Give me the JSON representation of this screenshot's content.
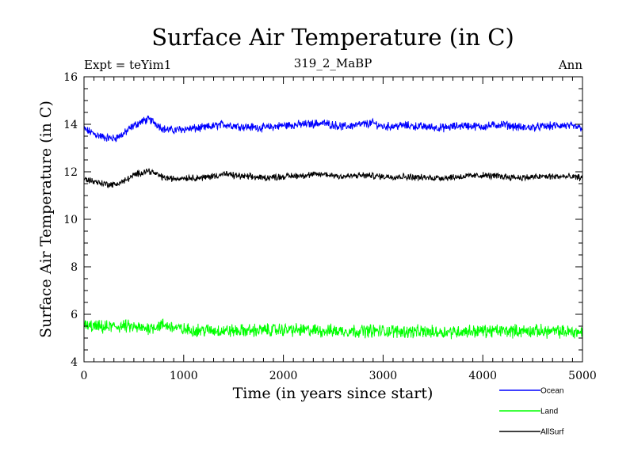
{
  "chart_data": {
    "type": "line",
    "title": "Surface Air Temperature (in C)",
    "subtitle": "319_2_MaBP",
    "left_label": "Expt = teYim1",
    "right_label": "Ann",
    "xlabel": "Time (in years since start)",
    "ylabel": "Surface Air Temperature (in C)",
    "xlim": [
      0,
      5000
    ],
    "ylim": [
      4,
      16
    ],
    "x_ticks": [
      0,
      1000,
      2000,
      3000,
      4000,
      5000
    ],
    "x_tick_labels": [
      "0",
      "1000",
      "2000",
      "3000",
      "4000",
      "5000"
    ],
    "y_ticks": [
      4,
      6,
      8,
      10,
      12,
      14,
      16
    ],
    "y_tick_labels": [
      "4",
      "6",
      "8",
      "10",
      "12",
      "14",
      "16"
    ],
    "grid": false,
    "legend_position": "bottom-right",
    "series": [
      {
        "name": "Ocean",
        "color": "#0000ff",
        "noise_amplitude": 0.14,
        "keypoints": {
          "x": [
            0,
            100,
            200,
            300,
            400,
            500,
            600,
            650,
            700,
            800,
            900,
            1000,
            1200,
            1400,
            1600,
            1800,
            2000,
            2200,
            2400,
            2600,
            2800,
            2900,
            3000,
            3200,
            3400,
            3600,
            3800,
            4000,
            4200,
            4400,
            4600,
            4800,
            5000
          ],
          "y": [
            13.8,
            13.6,
            13.45,
            13.4,
            13.6,
            13.95,
            14.15,
            14.2,
            14.1,
            13.8,
            13.75,
            13.8,
            13.85,
            14.0,
            13.9,
            13.85,
            13.95,
            14.0,
            14.05,
            13.9,
            14.0,
            14.05,
            13.9,
            13.95,
            13.9,
            13.85,
            13.95,
            13.9,
            14.0,
            13.85,
            13.9,
            13.95,
            13.85
          ]
        }
      },
      {
        "name": "Land",
        "color": "#00ff00",
        "noise_amplitude": 0.22,
        "keypoints": {
          "x": [
            0,
            200,
            400,
            600,
            800,
            1000,
            1500,
            2000,
            2500,
            3000,
            3500,
            4000,
            4500,
            5000
          ],
          "y": [
            5.5,
            5.45,
            5.5,
            5.4,
            5.55,
            5.35,
            5.3,
            5.35,
            5.3,
            5.3,
            5.25,
            5.3,
            5.3,
            5.25
          ]
        }
      },
      {
        "name": "AllSurf",
        "color": "#000000",
        "noise_amplitude": 0.11,
        "keypoints": {
          "x": [
            0,
            100,
            200,
            300,
            400,
            500,
            600,
            650,
            700,
            800,
            900,
            1000,
            1200,
            1400,
            1600,
            1800,
            2000,
            2200,
            2400,
            2600,
            2800,
            3000,
            3200,
            3400,
            3600,
            3800,
            4000,
            4200,
            4400,
            4600,
            4800,
            5000
          ],
          "y": [
            11.7,
            11.6,
            11.5,
            11.45,
            11.6,
            11.85,
            12.0,
            12.05,
            11.95,
            11.75,
            11.7,
            11.75,
            11.75,
            11.9,
            11.8,
            11.75,
            11.8,
            11.85,
            11.9,
            11.8,
            11.85,
            11.8,
            11.8,
            11.75,
            11.75,
            11.8,
            11.85,
            11.8,
            11.75,
            11.8,
            11.8,
            11.75
          ]
        }
      }
    ]
  }
}
